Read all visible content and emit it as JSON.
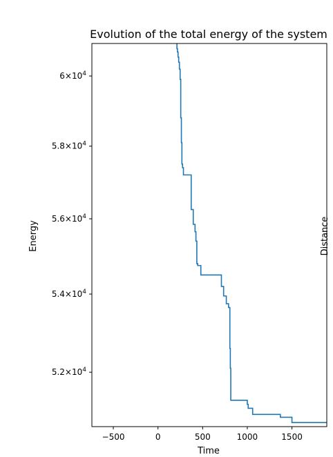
{
  "chart_data": {
    "type": "line",
    "title": "Evolution of the total energy of the system",
    "xlabel": "Time",
    "ylabel": "Energy",
    "right_label": "Distance",
    "xlim": [
      -740,
      1890
    ],
    "ylim": [
      50650,
      60950
    ],
    "yscale": "log",
    "grid": false,
    "x_ticks": [
      {
        "value": -500,
        "label": "−500"
      },
      {
        "value": 0,
        "label": "0"
      },
      {
        "value": 500,
        "label": "500"
      },
      {
        "value": 1000,
        "label": "1000"
      },
      {
        "value": 1500,
        "label": "1500"
      }
    ],
    "y_ticks": [
      {
        "value": 52000,
        "mantissa": "5.2",
        "exp": "4"
      },
      {
        "value": 54000,
        "mantissa": "5.4",
        "exp": "4"
      },
      {
        "value": 56000,
        "mantissa": "5.6",
        "exp": "4"
      },
      {
        "value": 58000,
        "mantissa": "5.8",
        "exp": "4"
      },
      {
        "value": 60000,
        "mantissa": "6",
        "exp": "4"
      }
    ],
    "series": [
      {
        "color": "#1f77b4",
        "step": true,
        "x": [
          195,
          205,
          212,
          218,
          225,
          232,
          240,
          248,
          255,
          262,
          268,
          275,
          285,
          300,
          330,
          365,
          372,
          385,
          395,
          405,
          415,
          425,
          435,
          445,
          455,
          470,
          480,
          500,
          520,
          560,
          600,
          650,
          700,
          710,
          720,
          735,
          750,
          765,
          775,
          790,
          800,
          805,
          810,
          815,
          825,
          850,
          900,
          950,
          980,
          1000,
          1010,
          1040,
          1060,
          1100,
          1200,
          1300,
          1350,
          1370,
          1400,
          1450,
          1490,
          1500,
          1600,
          1700,
          1800,
          1890
        ],
        "y": [
          61200,
          61000,
          60800,
          60700,
          60550,
          60400,
          60200,
          59900,
          58800,
          58100,
          57500,
          57400,
          57200,
          57200,
          57200,
          57200,
          56250,
          56250,
          55850,
          55850,
          55650,
          55400,
          54800,
          54750,
          54750,
          54750,
          54500,
          54500,
          54500,
          54500,
          54500,
          54500,
          54500,
          54200,
          54200,
          53950,
          53950,
          53750,
          53750,
          53650,
          53650,
          52600,
          52100,
          51300,
          51300,
          51300,
          51300,
          51300,
          51300,
          51200,
          51100,
          51100,
          50950,
          50950,
          50950,
          50950,
          50950,
          50880,
          50880,
          50880,
          50880,
          50750,
          50750,
          50750,
          50750,
          50750
        ]
      }
    ]
  }
}
